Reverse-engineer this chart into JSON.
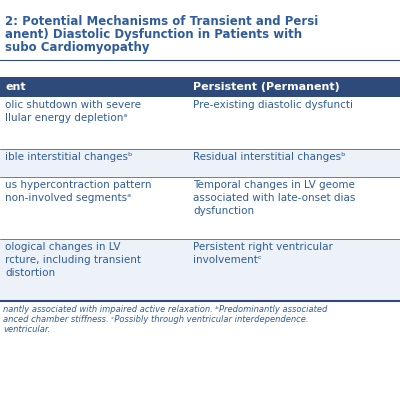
{
  "title_line1": "2: Potential Mechanisms of Transient and Persi",
  "title_line2": "anent) Diastolic Dysfunction in Patients with",
  "title_line3": "subo Cardiomyopathy",
  "title_color": "#2e5c9e",
  "header_bg": "#2d4a7a",
  "header_text_color": "#ffffff",
  "col1_header": "ent",
  "col2_header": "Persistent (Permanent)",
  "rows": [
    [
      "olic shutdown with severe\nllular energy depletionᵃ",
      "Pre-existing diastolic dysfuncti"
    ],
    [
      "ible interstitial changesᵇ",
      "Residual interstitial changesᵇ"
    ],
    [
      "us hypercontraction pattern\nnon-involved segmentsᵃ",
      "Temporal changes in LV geome\nassociated with late-onset dias\ndysfunction"
    ],
    [
      "ological changes in LV\nrcture, including transient\ndistortion",
      "Persistent right ventricular\ninvolvementᶜ"
    ]
  ],
  "footnote_line1": "nantly associated with impaired active relaxation. ᵇPredominantly associated",
  "footnote_line2": "anced chamber stiffness. ᶜPossibly through ventricular interdependence.",
  "footnote_line3": "ventricular.",
  "bg_color": "#ffffff",
  "row_colors": [
    "#ffffff",
    "#edf2f9",
    "#ffffff",
    "#edf2f9"
  ],
  "line_color": "#2d4a7a",
  "text_color": "#2e5c9e",
  "footnote_color": "#2e5c9e",
  "title_fontsize": 8.5,
  "header_fontsize": 8.0,
  "cell_fontsize": 7.5,
  "footnote_fontsize": 6.0
}
